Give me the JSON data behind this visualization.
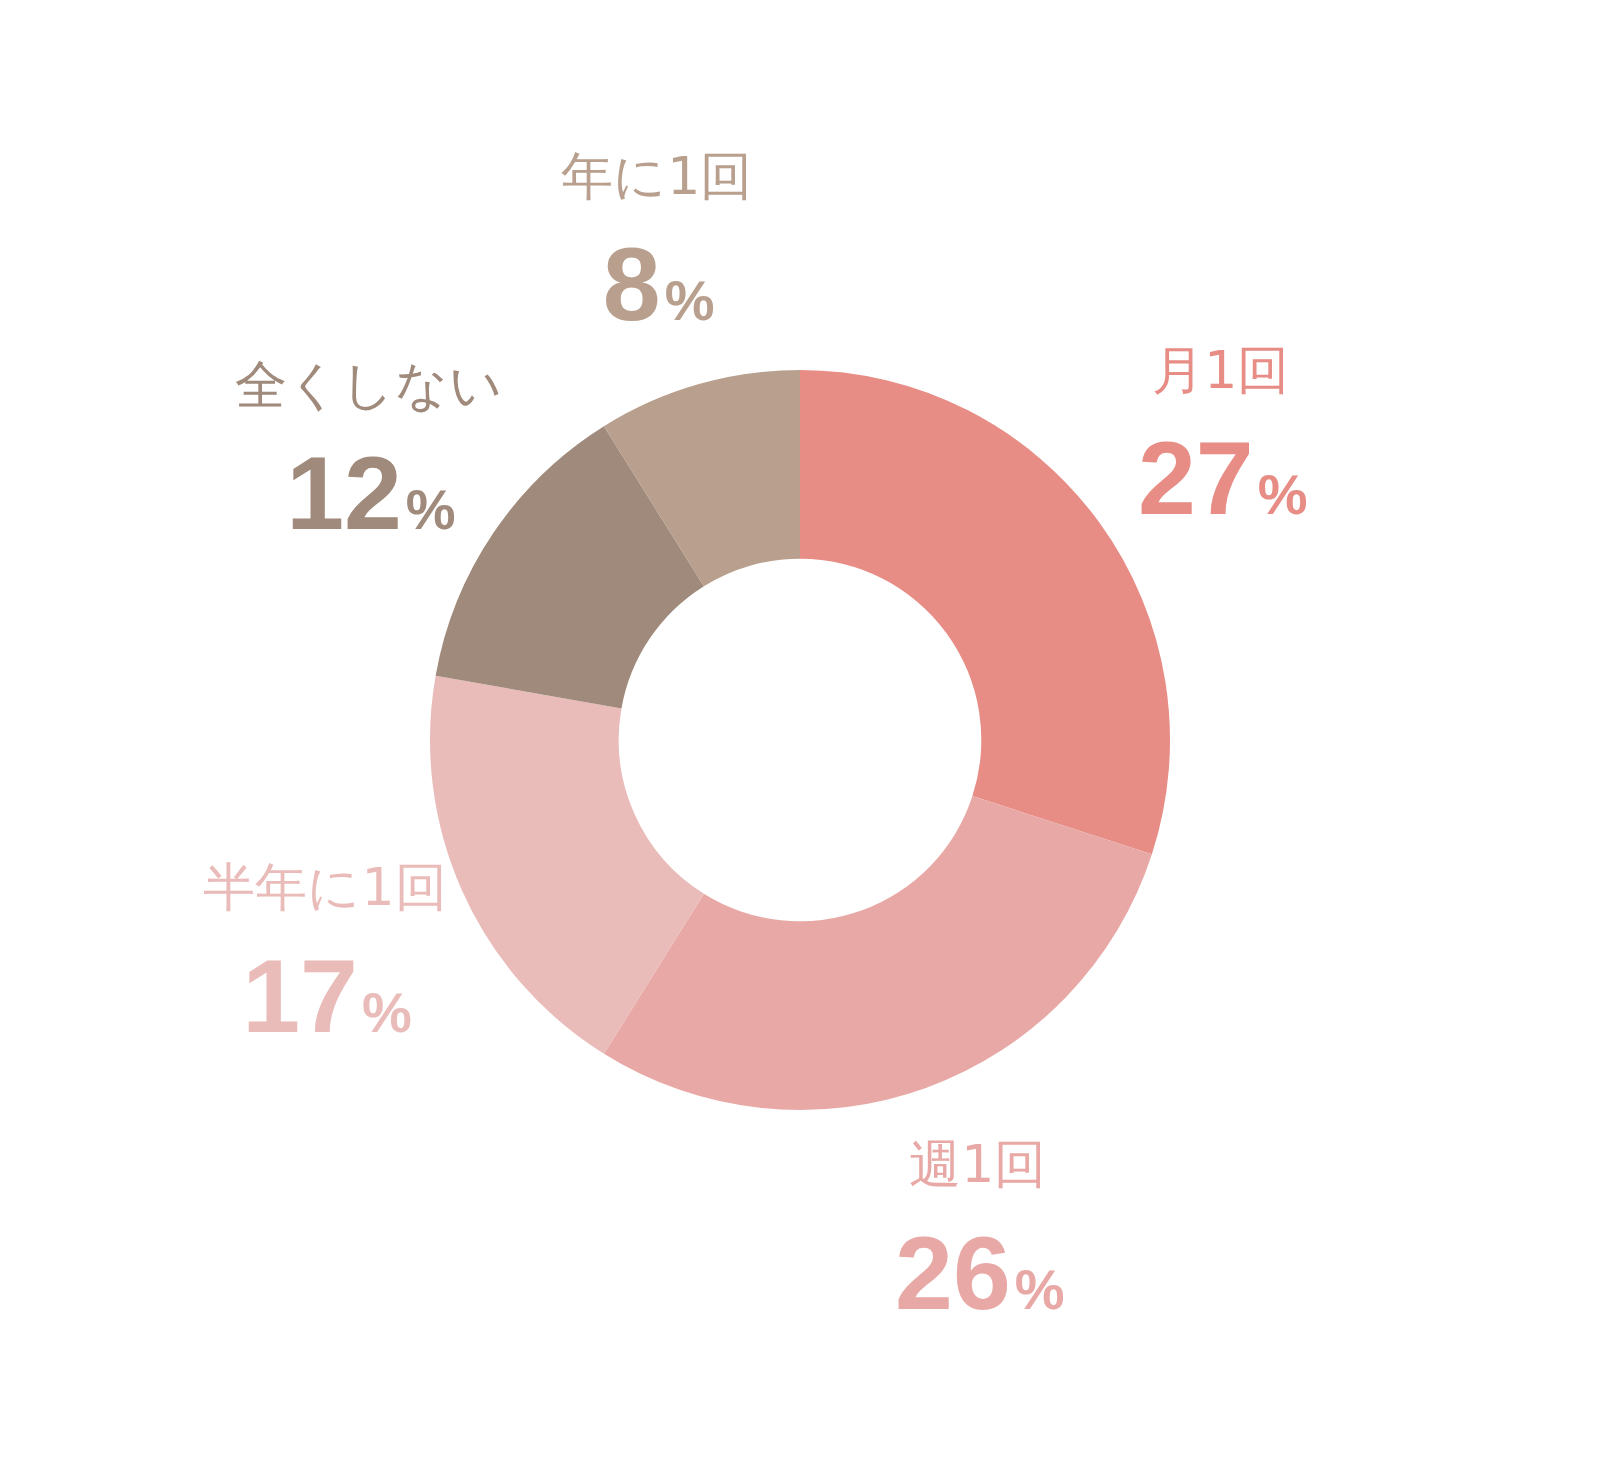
{
  "chart_data": {
    "type": "donut",
    "categories": [
      "月1回",
      "週1回",
      "半年に1回",
      "全くしない",
      "年に1回"
    ],
    "values": [
      27,
      26,
      17,
      12,
      8
    ],
    "colors": [
      "#e78d86",
      "#e8a9a6",
      "#e9bcba",
      "#a08a7b",
      "#b9a08e"
    ],
    "value_labels": [
      "27%",
      "26%",
      "17%",
      "12%",
      "8%"
    ],
    "legend": false
  }
}
